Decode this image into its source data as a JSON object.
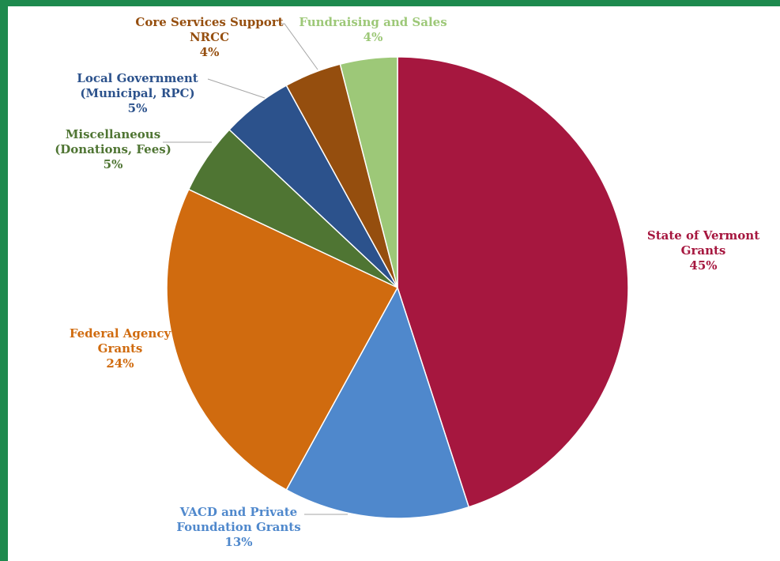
{
  "chart_data": {
    "type": "pie",
    "title": "",
    "slices": [
      {
        "label": [
          "State of Vermont",
          "Grants"
        ],
        "value": 45,
        "pct": "45%",
        "color": "#a6173f"
      },
      {
        "label": [
          "VACD and Private",
          "Foundation Grants"
        ],
        "value": 13,
        "pct": "13%",
        "color": "#4f88cc"
      },
      {
        "label": [
          "Federal Agency",
          "Grants"
        ],
        "value": 24,
        "pct": "24%",
        "color": "#d06b0f"
      },
      {
        "label": [
          "Miscellaneous",
          "(Donations, Fees)"
        ],
        "value": 5,
        "pct": "5%",
        "color": "#4f7533"
      },
      {
        "label": [
          "Local Government",
          "(Municipal, RPC)"
        ],
        "value": 5,
        "pct": "5%",
        "color": "#2c528c"
      },
      {
        "label": [
          "Core Services Support",
          "NRCC"
        ],
        "value": 4,
        "pct": "4%",
        "color": "#954e0e"
      },
      {
        "label": [
          "Fundraising and Sales"
        ],
        "value": 4,
        "pct": "4%",
        "color": "#9dc878"
      }
    ],
    "start_angle_deg": 0,
    "direction": "clockwise",
    "label_text_colors": [
      "#a6173f",
      "#4f88cc",
      "#d06b0f",
      "#4f7533",
      "#2c528c",
      "#954e0e",
      "#9dc878"
    ]
  }
}
